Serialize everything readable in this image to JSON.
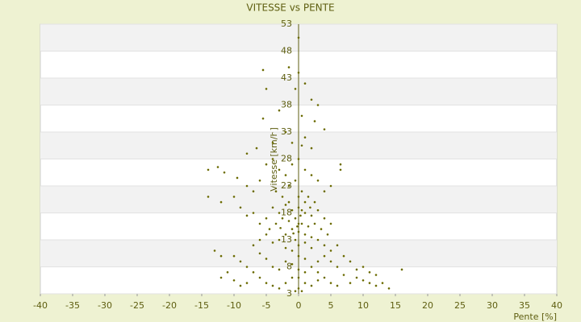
{
  "chart_data": {
    "type": "scatter",
    "title": "VITESSE vs PENTE",
    "x_label": "Pente [%]",
    "y_label": "Vitesse [km/h]",
    "color": "#6b6b00",
    "xlim": [
      -40,
      40
    ],
    "xticks": [
      -40,
      -35,
      -30,
      -25,
      -20,
      -15,
      -10,
      -5,
      0,
      5,
      10,
      15,
      20,
      25,
      30,
      35,
      40
    ],
    "ylim": [
      3,
      53
    ],
    "yticks": [
      3,
      8,
      13,
      18,
      23,
      28,
      33,
      38,
      43,
      48,
      53
    ],
    "grid": true,
    "x": [
      0,
      -5.5,
      -1.5,
      0,
      -5,
      -0.5,
      1,
      2,
      3,
      -3,
      -5.5,
      0.5,
      2.5,
      4,
      -2,
      1,
      -1,
      0.5,
      -4,
      -8,
      -6.5,
      2,
      -14,
      -12.5,
      -11.5,
      -9.5,
      -14,
      -12,
      -8,
      -7,
      -6,
      -5,
      -4,
      -3,
      -2,
      -1,
      0,
      1,
      2,
      3,
      6.5,
      6.5,
      5,
      4,
      -3.5,
      -2.5,
      -1.5,
      0.5,
      1.5,
      2.5,
      -0.5,
      0,
      -4,
      -3,
      -2,
      -1,
      0,
      1,
      2,
      3,
      4,
      -5,
      -6,
      -7,
      -8,
      -9,
      -10,
      -4.5,
      -3.5,
      -2.5,
      -1.5,
      -0.5,
      0.5,
      1.5,
      2.5,
      3.5,
      4.5,
      5,
      -1,
      0,
      1,
      2,
      3,
      -2,
      -3,
      -4,
      -5,
      -6,
      -7,
      0,
      1,
      2,
      4,
      5,
      6,
      -1,
      -2,
      -0.5,
      0.5,
      -1.5,
      1,
      0,
      -0.2,
      0.3,
      -0.8,
      1.8,
      -2.8,
      -12,
      -13,
      -10,
      -9,
      -8,
      -11,
      -12,
      -10,
      -9,
      -8,
      -7,
      -6,
      -5,
      -4,
      -3,
      -2,
      -1,
      0,
      0,
      1,
      2,
      3,
      4,
      5,
      6,
      7,
      8,
      9,
      10,
      11,
      12,
      13,
      14,
      12,
      16,
      10,
      8,
      7,
      6,
      5,
      4,
      3,
      2,
      1,
      -1,
      -2,
      -3,
      -4,
      -5,
      -6,
      0,
      0,
      1,
      -0.5,
      0.5,
      3,
      9,
      11
    ],
    "values": [
      50.5,
      44.5,
      45,
      44,
      41,
      41,
      42,
      39,
      38,
      37,
      35.5,
      36,
      35,
      33.5,
      33,
      32,
      31,
      30.5,
      31,
      29,
      30,
      30,
      26,
      26.5,
      25.5,
      24.5,
      21,
      20,
      23,
      22,
      24,
      27,
      28,
      26,
      25,
      27,
      28,
      26,
      25,
      24,
      27,
      26,
      23,
      22,
      22,
      21,
      23,
      22,
      21,
      20,
      24,
      21,
      19,
      18,
      19.5,
      18.5,
      19,
      18,
      17.5,
      18.5,
      17,
      17,
      16,
      18,
      17.5,
      19,
      21,
      15,
      16,
      17,
      16.5,
      17,
      16,
      15.5,
      16,
      15,
      14,
      16,
      15,
      14.5,
      14,
      13.5,
      13,
      14,
      13,
      12.5,
      14,
      13,
      12,
      12,
      12.5,
      11.5,
      12,
      11,
      12,
      11,
      11.5,
      13,
      18.5,
      20,
      20,
      16,
      15.5,
      17.5,
      14.2,
      19,
      15.2,
      10,
      11,
      10,
      9,
      8,
      7,
      6,
      5.5,
      4.5,
      5,
      7,
      6,
      5,
      4.5,
      4,
      5,
      6,
      4,
      6,
      5,
      4.5,
      5.5,
      6,
      5,
      4.5,
      6.5,
      5,
      6,
      5.5,
      5,
      4.5,
      5,
      4,
      6.5,
      7.5,
      8,
      9,
      10,
      8,
      9,
      10,
      9,
      8,
      9.5,
      8.5,
      9,
      7.5,
      8,
      9.5,
      10.5,
      10,
      7.5,
      7,
      3.5,
      3.5,
      7,
      7.5,
      7
    ]
  }
}
